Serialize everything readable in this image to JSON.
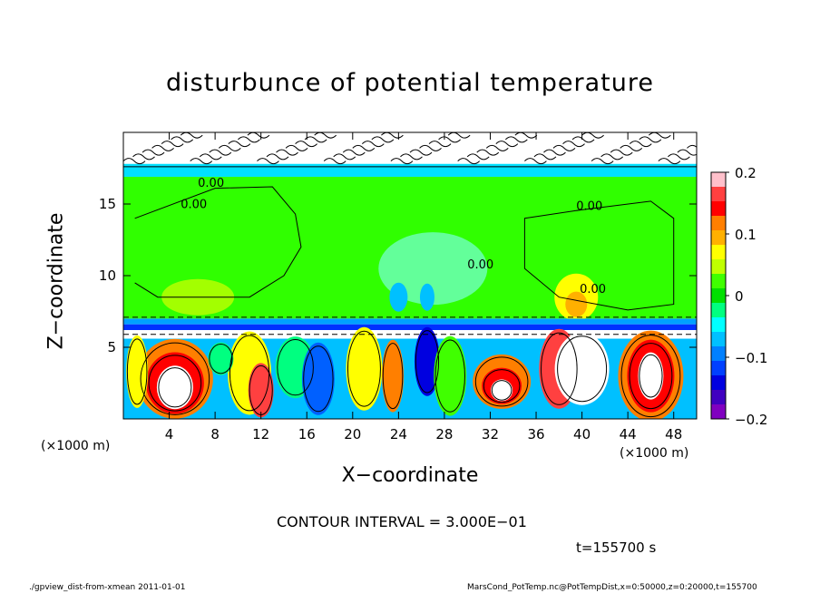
{
  "chart_data": {
    "type": "heatmap",
    "title": "disturbunce of potential temperature",
    "xlabel": "X−coordinate",
    "ylabel": "Z−coordinate",
    "x_unit_left": "(×1000 m)",
    "x_unit_right": "(×1000 m)",
    "xlim": [
      0,
      50
    ],
    "ylim": [
      0,
      20
    ],
    "x_ticks": [
      4,
      8,
      12,
      16,
      20,
      24,
      28,
      32,
      36,
      40,
      44,
      48
    ],
    "y_ticks": [
      5,
      10,
      15
    ],
    "colorbar": {
      "range": [
        -0.2,
        0.2
      ],
      "ticks": [
        0.2,
        0.1,
        0,
        -0.1,
        -0.2
      ],
      "tick_labels": [
        "0.2",
        "0.1",
        "0",
        "−0.1",
        "−0.2"
      ],
      "colors": [
        "#ffc0cb",
        "#ff4040",
        "#ff0000",
        "#ff7f00",
        "#ffb000",
        "#ffff00",
        "#c0ff00",
        "#40ff00",
        "#00e000",
        "#00ff80",
        "#00ffff",
        "#00c0ff",
        "#0080ff",
        "#0040ff",
        "#0000e0",
        "#4000c0",
        "#8000c0"
      ]
    },
    "contour_labels": [
      {
        "text": "0.00",
        "x": 6.5,
        "y": 16.2
      },
      {
        "text": "0.00",
        "x": 5.0,
        "y": 14.7
      },
      {
        "text": "0.00",
        "x": 39.5,
        "y": 14.6
      },
      {
        "text": "0.00",
        "x": 30.0,
        "y": 10.5
      },
      {
        "text": "0.00",
        "x": 39.8,
        "y": 8.8
      }
    ],
    "contour_interval": "CONTOUR INTERVAL = 3.000E−01",
    "time": "t=155700 s"
  },
  "footer": {
    "left": "./gpview_dist-from-xmean  2011-01-01",
    "right": "MarsCond_PotTemp.nc@PotTempDist,x=0:50000,z=0:20000,t=155700"
  }
}
